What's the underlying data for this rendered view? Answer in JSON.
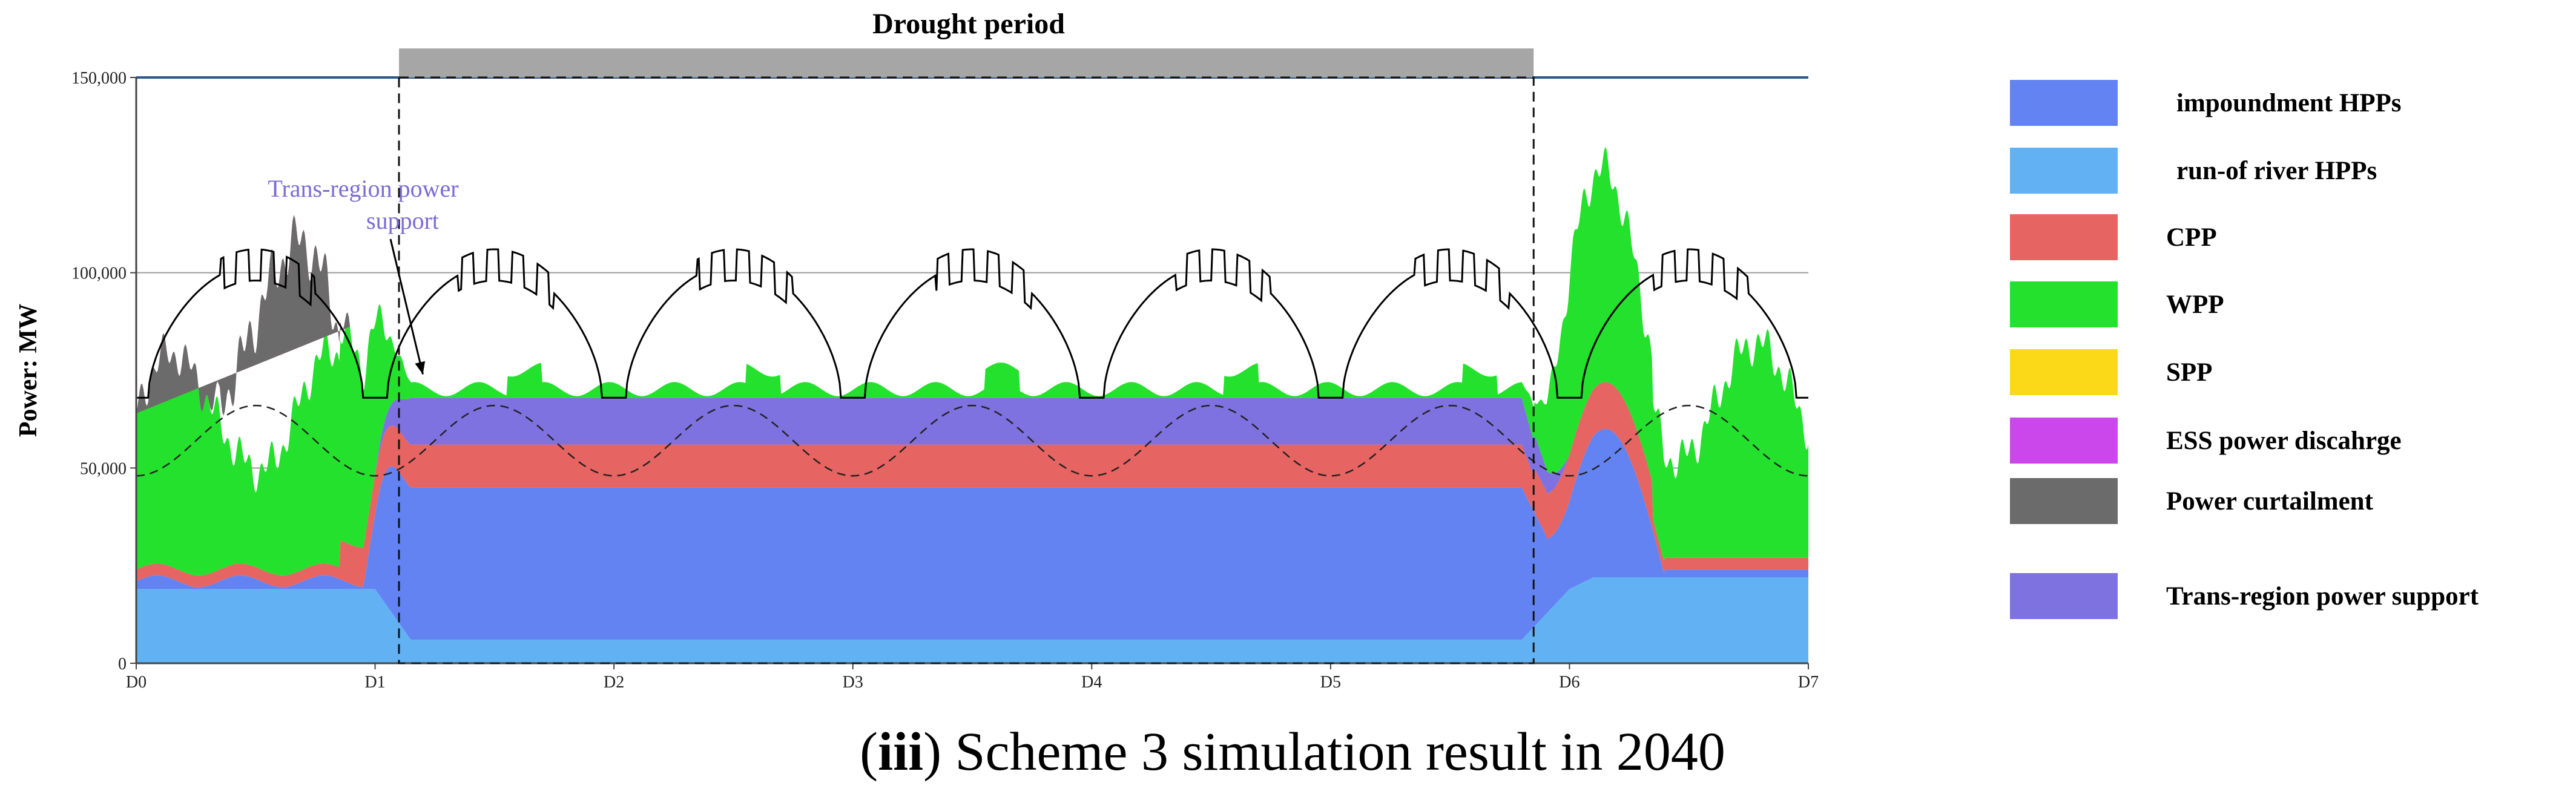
{
  "caption": {
    "prefix": "(",
    "bold": "iii",
    "rest": ") Scheme 3 simulation result in 2040"
  },
  "chart_data": {
    "type": "area",
    "stacked": true,
    "ylabel": "Power:  MW",
    "xlabel": "",
    "ylim": [
      0,
      150000
    ],
    "yticks": [
      0,
      50000,
      100000,
      150000
    ],
    "ytick_labels": [
      "0",
      "50,000",
      "100,000",
      "150,000"
    ],
    "xlim": [
      0,
      7
    ],
    "x_ticks": [
      0,
      1,
      2,
      3,
      4,
      5,
      6,
      7
    ],
    "x_tick_labels": [
      "D0",
      "D1",
      "D2",
      "D3",
      "D4",
      "D5",
      "D6",
      "D7"
    ],
    "grid": true,
    "legend_position": "right",
    "drought_period": {
      "label": "Drought period",
      "start": 1.1,
      "end": 5.85
    },
    "annotation": {
      "text_line1": "Trans-region power",
      "text_line2": "support",
      "target_x": 1.2,
      "target_y": 74000
    },
    "series": [
      {
        "name": "run-of river HPPs",
        "color": "#62b1f3"
      },
      {
        "name": "impoundment HPPs",
        "color": "#6383f2"
      },
      {
        "name": "CPP",
        "color": "#e66462"
      },
      {
        "name": "Trans-region power support",
        "color": "#7e72e1"
      },
      {
        "name": "WPP",
        "color": "#23e12c"
      },
      {
        "name": "SPP",
        "color": "#fbd918"
      },
      {
        "name": "ESS power discahrge",
        "color": "#cb47ec"
      },
      {
        "name": "Power curtailment",
        "color": "#6b6b6b"
      }
    ],
    "legend": [
      {
        "label": "impoundment HPPs",
        "color": "#6383f2"
      },
      {
        "label": "run-of river HPPs",
        "color": "#62b1f3"
      },
      {
        "label": "CPP",
        "color": "#e66462"
      },
      {
        "label": "WPP",
        "color": "#23e12c"
      },
      {
        "label": "SPP",
        "color": "#fbd918"
      },
      {
        "label": "ESS power discahrge",
        "color": "#cb47ec"
      },
      {
        "label": "Power curtailment",
        "color": "#6b6b6b"
      },
      {
        "label": "Trans-region power support",
        "color": "#7e72e1"
      }
    ]
  }
}
